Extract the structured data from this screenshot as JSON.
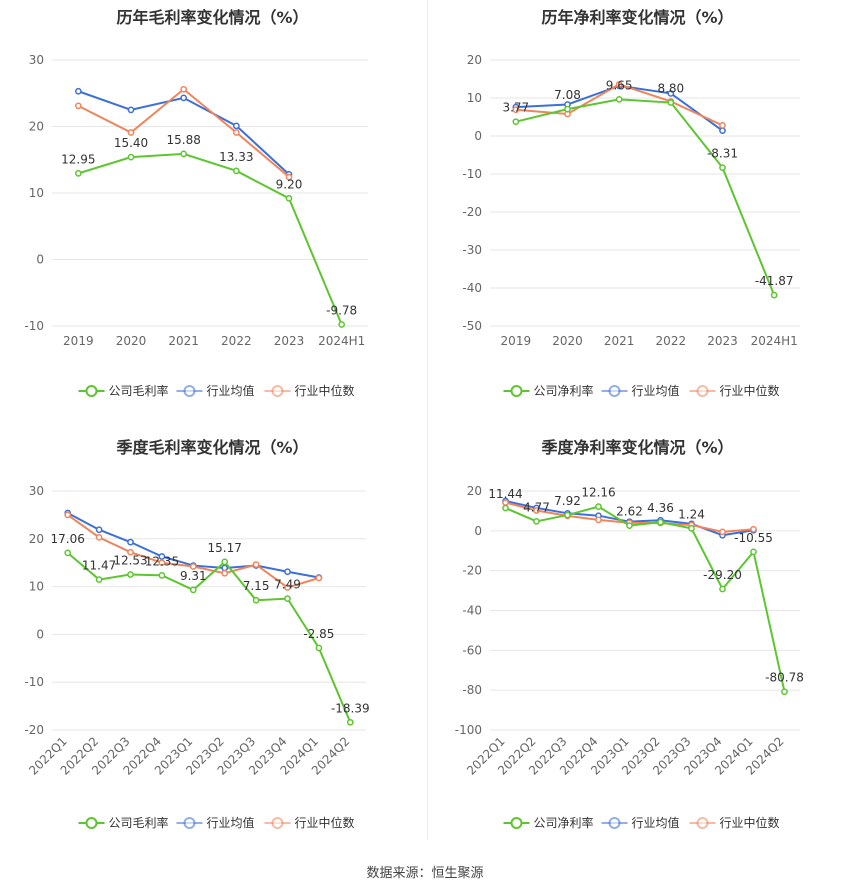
{
  "footer": {
    "source": "数据来源：恒生聚源"
  },
  "chart_data": [
    {
      "type": "line",
      "title": "历年毛利率变化情况（%）",
      "categories": [
        "2019",
        "2020",
        "2021",
        "2022",
        "2023",
        "2024H1"
      ],
      "ylim": [
        -10,
        30
      ],
      "yticks": [
        -10,
        0,
        10,
        20,
        30
      ],
      "grid": true,
      "legend_position": "bottom",
      "series": [
        {
          "name": "公司毛利率",
          "color": "#5cc62f",
          "values": [
            12.95,
            15.4,
            15.88,
            13.33,
            9.2,
            -9.78
          ],
          "labels": [
            "12.95",
            "15.40",
            "15.88",
            "13.33",
            "9.20",
            "-9.78"
          ]
        },
        {
          "name": "行业均值",
          "color": "#3b6fd9",
          "values": [
            25.3,
            22.5,
            24.3,
            20.1,
            12.8,
            null
          ]
        },
        {
          "name": "行业中位数",
          "color": "#f0845a",
          "values": [
            23.1,
            19.1,
            25.6,
            19.1,
            12.4,
            null
          ]
        }
      ]
    },
    {
      "type": "line",
      "title": "历年净利率变化情况（%）",
      "categories": [
        "2019",
        "2020",
        "2021",
        "2022",
        "2023",
        "2024H1"
      ],
      "ylim": [
        -50,
        20
      ],
      "yticks": [
        -50,
        -40,
        -30,
        -20,
        -10,
        0,
        10,
        20
      ],
      "grid": true,
      "legend_position": "bottom",
      "series": [
        {
          "name": "公司净利率",
          "color": "#5cc62f",
          "values": [
            3.77,
            7.08,
            9.65,
            8.8,
            -8.31,
            -41.87
          ],
          "labels": [
            "3.77",
            "7.08",
            "9.65",
            "8.80",
            "-8.31",
            "-41.87"
          ]
        },
        {
          "name": "行业均值",
          "color": "#3b6fd9",
          "values": [
            7.6,
            8.3,
            13.2,
            11.2,
            1.4,
            null
          ]
        },
        {
          "name": "行业中位数",
          "color": "#f0845a",
          "values": [
            6.9,
            5.8,
            13.6,
            9.1,
            2.8,
            null
          ]
        }
      ]
    },
    {
      "type": "line",
      "title": "季度毛利率变化情况（%）",
      "categories": [
        "2022Q1",
        "2022Q2",
        "2022Q3",
        "2022Q4",
        "2023Q1",
        "2023Q2",
        "2023Q3",
        "2023Q4",
        "2024Q1",
        "2024Q2"
      ],
      "ylim": [
        -20,
        30
      ],
      "yticks": [
        -20,
        -10,
        0,
        10,
        20,
        30
      ],
      "grid": true,
      "legend_position": "bottom",
      "series": [
        {
          "name": "公司毛利率",
          "color": "#5cc62f",
          "values": [
            17.06,
            11.47,
            12.53,
            12.35,
            9.31,
            15.17,
            7.15,
            7.49,
            -2.85,
            -18.39
          ],
          "labels": [
            "17.06",
            "11.47",
            "12.53",
            "12.35",
            "9.31",
            "15.17",
            "7.15",
            "7.49",
            "-2.85",
            "-18.39"
          ]
        },
        {
          "name": "行业均值",
          "color": "#3b6fd9",
          "values": [
            25.4,
            21.9,
            19.3,
            16.3,
            14.4,
            13.9,
            14.4,
            13.1,
            11.9,
            null
          ]
        },
        {
          "name": "行业中位数",
          "color": "#f0845a",
          "values": [
            25.0,
            20.3,
            17.2,
            15.0,
            14.2,
            12.8,
            14.6,
            9.8,
            11.8,
            null
          ]
        }
      ]
    },
    {
      "type": "line",
      "title": "季度净利率变化情况（%）",
      "categories": [
        "2022Q1",
        "2022Q2",
        "2022Q3",
        "2022Q4",
        "2023Q1",
        "2023Q2",
        "2023Q3",
        "2023Q4",
        "2024Q1",
        "2024Q2"
      ],
      "ylim": [
        -100,
        20
      ],
      "yticks": [
        -100,
        -80,
        -60,
        -40,
        -20,
        0,
        20
      ],
      "grid": true,
      "legend_position": "bottom",
      "series": [
        {
          "name": "公司净利率",
          "color": "#5cc62f",
          "values": [
            11.44,
            4.77,
            7.92,
            12.16,
            2.62,
            4.36,
            1.24,
            -29.2,
            -10.55,
            -80.78
          ],
          "labels": [
            "11.44",
            "4.77",
            "7.92",
            "12.16",
            "2.62",
            "4.36",
            "1.24",
            "-29.20",
            "-10.55",
            "-80.78"
          ]
        },
        {
          "name": "行业均值",
          "color": "#3b6fd9",
          "values": [
            15.0,
            11.5,
            8.8,
            7.6,
            4.6,
            5.3,
            3.5,
            -2.2,
            0.3,
            null
          ]
        },
        {
          "name": "行业中位数",
          "color": "#f0845a",
          "values": [
            14.2,
            10.2,
            7.5,
            5.5,
            4.0,
            3.9,
            2.9,
            -0.5,
            0.8,
            null
          ]
        }
      ]
    }
  ]
}
